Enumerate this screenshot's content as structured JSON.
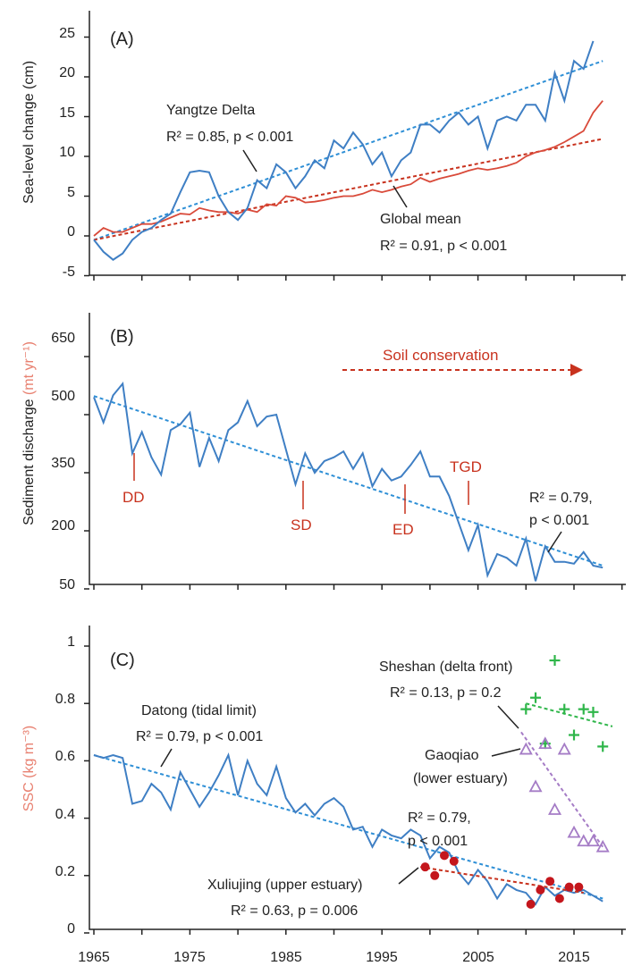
{
  "colors": {
    "blue": "#3f7fc4",
    "blue_trend": "#2e8fd6",
    "red": "#d94a3a",
    "red_trend": "#c8321e",
    "green": "#2fb64a",
    "purple": "#a57cc6",
    "dark_red": "#c4161c",
    "axis": "#222222",
    "salmon": "#e88070"
  },
  "x_ticks": [
    "1965",
    "1975",
    "1985",
    "1995",
    "2005",
    "2015"
  ],
  "panels": {
    "A": {
      "label": "(A)",
      "ylabel": "Sea-level change (cm)",
      "yticks": [
        "25",
        "20",
        "15",
        "10",
        "5",
        "0",
        "-5"
      ],
      "annot_yangtze_title": "Yangtze Delta",
      "annot_yangtze_stats": "R² = 0.85, p < 0.001",
      "annot_global_title": "Global mean",
      "annot_global_stats": "R² = 0.91, p < 0.001"
    },
    "B": {
      "label": "(B)",
      "ylabel_main": "Sediment discharge ",
      "ylabel_unit": "(mt yr⁻¹)",
      "yticks": [
        "650",
        "500",
        "350",
        "200",
        "50"
      ],
      "soil_label": "Soil conservation",
      "dams": [
        "DD",
        "SD",
        "ED",
        "TGD"
      ],
      "annot_r2": "R² = 0.79,",
      "annot_p": "p < 0.001"
    },
    "C": {
      "label": "(C)",
      "ylabel": "SSC (kg m⁻³)",
      "yticks": [
        "1",
        "0.8",
        "0.6",
        "0.4",
        "0.2",
        "0"
      ],
      "annot_sheshan_title": "Sheshan (delta front)",
      "annot_sheshan_stats": "R² = 0.13, p = 0.2",
      "annot_datong_title": "Datong (tidal limit)",
      "annot_datong_stats": "R² = 0.79, p < 0.001",
      "annot_gaoqiao_title1": "Gaoqiao",
      "annot_gaoqiao_title2": "(lower estuary)",
      "annot_gaoqiao_r2": "R² = 0.79,",
      "annot_gaoqiao_p": "p < 0.001",
      "annot_xuliujing_title": "Xuliujing (upper estuary)",
      "annot_xuliujing_stats": "R² = 0.63, p = 0.006"
    }
  },
  "chart_data": [
    {
      "type": "line",
      "panel": "A",
      "ylabel": "Sea-level change (cm)",
      "xlim": [
        1965,
        2020
      ],
      "ylim": [
        -5,
        27
      ],
      "series": [
        {
          "name": "Yangtze Delta",
          "x": [
            1965,
            1966,
            1967,
            1968,
            1969,
            1970,
            1971,
            1972,
            1973,
            1974,
            1975,
            1976,
            1977,
            1978,
            1979,
            1980,
            1981,
            1982,
            1983,
            1984,
            1985,
            1986,
            1987,
            1988,
            1989,
            1990,
            1991,
            1992,
            1993,
            1994,
            1995,
            1996,
            1997,
            1998,
            1999,
            2000,
            2001,
            2002,
            2003,
            2004,
            2005,
            2006,
            2007,
            2008,
            2009,
            2010,
            2011,
            2012,
            2013,
            2014,
            2015,
            2016,
            2017
          ],
          "y": [
            -0.5,
            -2.0,
            -3.0,
            -2.2,
            -0.5,
            0.5,
            1.0,
            2.0,
            2.8,
            5.5,
            8.0,
            8.2,
            8.0,
            5.0,
            3.0,
            2.0,
            3.5,
            7.0,
            6.0,
            9.0,
            8.0,
            6.0,
            7.5,
            9.5,
            8.5,
            12.0,
            11.0,
            13.0,
            11.5,
            9.0,
            10.5,
            7.5,
            9.5,
            10.5,
            14.0,
            14.0,
            13.0,
            14.5,
            15.5,
            14.0,
            15.0,
            11.0,
            14.5,
            15.0,
            14.5,
            16.5,
            16.5,
            14.5,
            20.5,
            17.0,
            22.0,
            21.0,
            24.5
          ]
        },
        {
          "name": "Global mean",
          "x": [
            1965,
            1966,
            1967,
            1968,
            1969,
            1970,
            1971,
            1972,
            1973,
            1974,
            1975,
            1976,
            1977,
            1978,
            1979,
            1980,
            1981,
            1982,
            1983,
            1984,
            1985,
            1986,
            1987,
            1988,
            1989,
            1990,
            1991,
            1992,
            1993,
            1994,
            1995,
            1996,
            1997,
            1998,
            1999,
            2000,
            2001,
            2002,
            2003,
            2004,
            2005,
            2006,
            2007,
            2008,
            2009,
            2010,
            2011,
            2012,
            2013,
            2014,
            2015,
            2016,
            2017,
            2018
          ],
          "y": [
            0.0,
            1.0,
            0.5,
            0.5,
            1.0,
            1.5,
            1.5,
            1.8,
            2.3,
            2.8,
            2.7,
            3.5,
            3.2,
            3.0,
            3.0,
            2.8,
            3.3,
            3.0,
            4.0,
            3.8,
            5.0,
            4.8,
            4.2,
            4.3,
            4.5,
            4.8,
            5.0,
            5.0,
            5.3,
            5.8,
            5.5,
            5.8,
            6.2,
            6.5,
            7.3,
            6.8,
            7.2,
            7.5,
            7.8,
            8.2,
            8.5,
            8.3,
            8.5,
            8.8,
            9.2,
            10.0,
            10.5,
            10.8,
            11.2,
            11.8,
            12.5,
            13.2,
            15.5,
            17.0
          ]
        },
        {
          "name": "Yangtze Delta trend",
          "x": [
            1965,
            2018
          ],
          "y": [
            -0.5,
            22.0
          ]
        },
        {
          "name": "Global mean trend",
          "x": [
            1965,
            2018
          ],
          "y": [
            -0.5,
            12.2
          ]
        }
      ]
    },
    {
      "type": "line",
      "panel": "B",
      "ylabel": "Sediment discharge (mt yr⁻¹)",
      "xlim": [
        1965,
        2020
      ],
      "ylim": [
        50,
        700
      ],
      "series": [
        {
          "name": "Datong",
          "x": [
            1965,
            1966,
            1967,
            1968,
            1969,
            1970,
            1971,
            1972,
            1973,
            1974,
            1975,
            1976,
            1977,
            1978,
            1979,
            1980,
            1981,
            1982,
            1983,
            1984,
            1985,
            1986,
            1987,
            1988,
            1989,
            1990,
            1991,
            1992,
            1993,
            1994,
            1995,
            1996,
            1997,
            1998,
            1999,
            2000,
            2001,
            2002,
            2003,
            2004,
            2005,
            2006,
            2007,
            2008,
            2009,
            2010,
            2011,
            2012,
            2013,
            2014,
            2015,
            2016,
            2017,
            2018
          ],
          "y": [
            545,
            480,
            550,
            580,
            400,
            455,
            390,
            345,
            460,
            475,
            505,
            365,
            440,
            380,
            460,
            480,
            535,
            470,
            495,
            500,
            410,
            320,
            400,
            350,
            380,
            390,
            405,
            360,
            400,
            315,
            360,
            330,
            340,
            370,
            405,
            340,
            340,
            290,
            220,
            150,
            215,
            85,
            140,
            130,
            110,
            180,
            70,
            160,
            120,
            120,
            115,
            145,
            110,
            105
          ]
        },
        {
          "name": "Trend",
          "x": [
            1965,
            2018
          ],
          "y": [
            548,
            110
          ]
        }
      ],
      "annotations": [
        {
          "label": "DD",
          "year": 1969
        },
        {
          "label": "SD",
          "year": 1987
        },
        {
          "label": "ED",
          "year": 1997
        },
        {
          "label": "TGD",
          "year": 2003
        },
        {
          "label": "Soil conservation",
          "from": 1990,
          "to": 2018
        }
      ]
    },
    {
      "type": "line",
      "panel": "C",
      "ylabel": "SSC (kg m⁻³)",
      "xlim": [
        1965,
        2020
      ],
      "ylim": [
        0,
        1.05
      ],
      "series": [
        {
          "name": "Datong (tidal limit)",
          "x": [
            1965,
            1966,
            1967,
            1968,
            1969,
            1970,
            1971,
            1972,
            1973,
            1974,
            1975,
            1976,
            1977,
            1978,
            1979,
            1980,
            1981,
            1982,
            1983,
            1984,
            1985,
            1986,
            1987,
            1988,
            1989,
            1990,
            1991,
            1992,
            1993,
            1994,
            1995,
            1996,
            1997,
            1998,
            1999,
            2000,
            2001,
            2002,
            2003,
            2004,
            2005,
            2006,
            2007,
            2008,
            2009,
            2010,
            2011,
            2012,
            2013,
            2014,
            2015,
            2016,
            2017,
            2018
          ],
          "y": [
            0.62,
            0.61,
            0.62,
            0.61,
            0.45,
            0.46,
            0.52,
            0.49,
            0.43,
            0.56,
            0.5,
            0.44,
            0.49,
            0.55,
            0.62,
            0.48,
            0.6,
            0.52,
            0.48,
            0.58,
            0.47,
            0.42,
            0.45,
            0.41,
            0.45,
            0.47,
            0.44,
            0.36,
            0.37,
            0.3,
            0.36,
            0.34,
            0.33,
            0.36,
            0.34,
            0.26,
            0.3,
            0.28,
            0.21,
            0.17,
            0.22,
            0.18,
            0.12,
            0.17,
            0.15,
            0.14,
            0.1,
            0.16,
            0.13,
            0.15,
            0.14,
            0.15,
            0.13,
            0.11
          ]
        },
        {
          "name": "Datong trend",
          "x": [
            1965,
            2018
          ],
          "y": [
            0.62,
            0.12
          ]
        },
        {
          "name": "Sheshan (delta front)",
          "x": [
            2010,
            2011,
            2012,
            2013,
            2014,
            2015,
            2016,
            2017,
            2018
          ],
          "y": [
            0.78,
            0.82,
            0.66,
            0.95,
            0.78,
            0.69,
            0.78,
            0.77,
            0.65
          ]
        },
        {
          "name": "Sheshan trend",
          "x": [
            2010,
            2019
          ],
          "y": [
            0.8,
            0.72
          ]
        },
        {
          "name": "Gaoqiao (lower estuary)",
          "x": [
            2010,
            2011,
            2012,
            2013,
            2014,
            2015,
            2016,
            2017,
            2018
          ],
          "y": [
            0.64,
            0.51,
            0.66,
            0.43,
            0.64,
            0.35,
            0.32,
            0.32,
            0.3
          ]
        },
        {
          "name": "Gaoqiao trend",
          "x": [
            2009.5,
            2018
          ],
          "y": [
            0.7,
            0.3
          ]
        },
        {
          "name": "Xuliujing (upper estuary)",
          "x": [
            1999.5,
            2000.5,
            2001.5,
            2002.5,
            2010.5,
            2011.5,
            2012.5,
            2013.5,
            2014.5,
            2015.5
          ],
          "y": [
            0.23,
            0.2,
            0.27,
            0.25,
            0.1,
            0.15,
            0.18,
            0.12,
            0.16,
            0.16
          ]
        },
        {
          "name": "Xuliujing trend",
          "x": [
            1999,
            2016
          ],
          "y": [
            0.23,
            0.14
          ]
        }
      ]
    }
  ]
}
